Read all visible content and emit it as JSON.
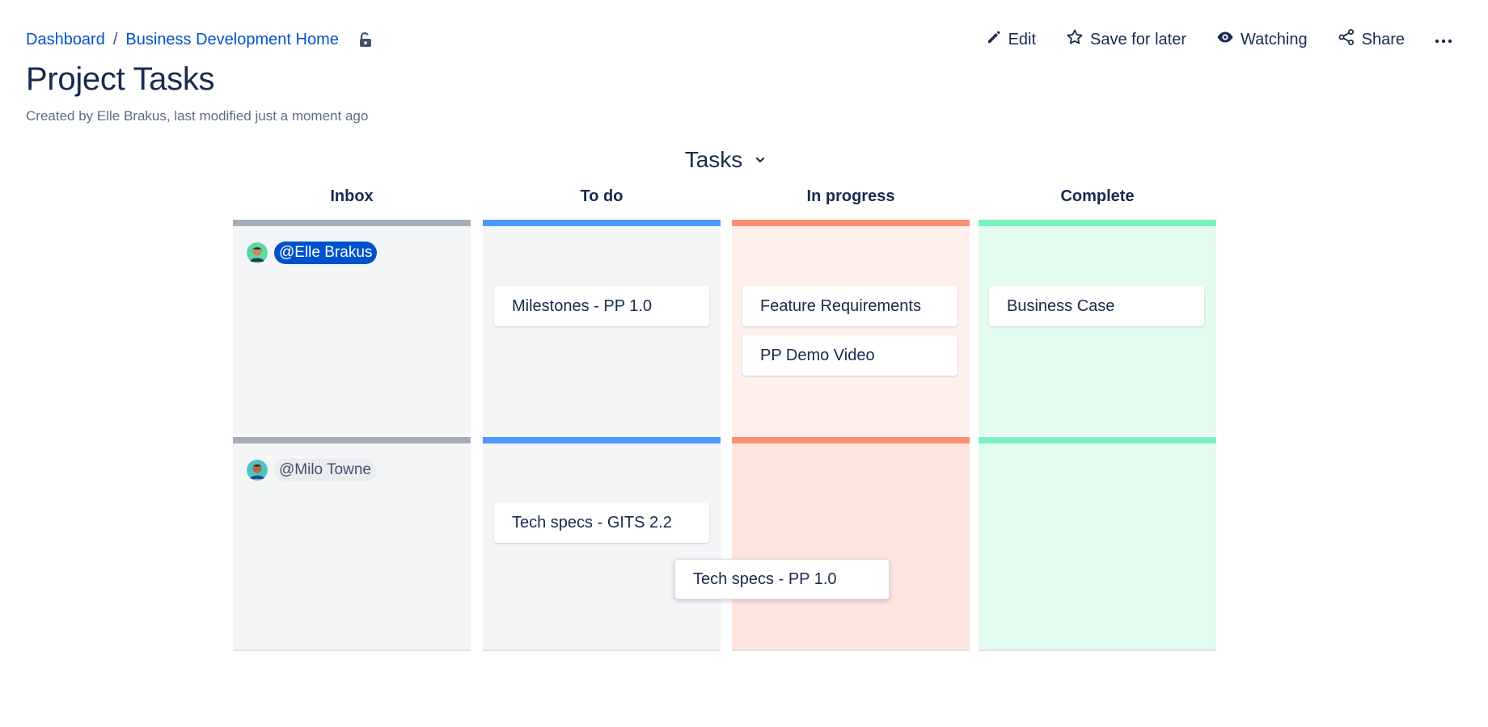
{
  "breadcrumbs": [
    "Dashboard",
    "Business Development Home"
  ],
  "breadcrumb_separator": "/",
  "icons": {
    "lock": "unlock-icon",
    "edit": "pencil-icon",
    "save": "star-icon",
    "watch": "eye-icon",
    "share": "share-icon",
    "more": "more-icon",
    "chevron": "chevron-down-icon"
  },
  "actions": {
    "edit": "Edit",
    "save_for_later": "Save for later",
    "watching": "Watching",
    "share": "Share",
    "more": "···"
  },
  "page": {
    "title": "Project Tasks",
    "byline": "Created by Elle Brakus, last modified just a moment ago"
  },
  "board": {
    "title": "Tasks",
    "columns": [
      {
        "label": "Inbox",
        "bar_color": "#a5adba",
        "bg_color": "#f4f5f7"
      },
      {
        "label": "To do",
        "bar_color": "#4c9aff",
        "bg_color": "#f4f5f7"
      },
      {
        "label": "In progress",
        "bar_color": "#ff8f73",
        "bg_color": "#ffebe6"
      },
      {
        "label": "Complete",
        "bar_color": "#79f2c0",
        "bg_color": "#e3fcef"
      }
    ],
    "rows": [
      {
        "assignee": "@Elle Brakus",
        "to_do": [
          "Milestones - PP 1.0"
        ],
        "in_progress": [
          "Feature Requirements",
          "PP Demo Video"
        ],
        "complete": [
          "Business Case"
        ]
      },
      {
        "assignee": "@Milo Towne",
        "to_do": [
          "Tech specs - GITS 2.2"
        ],
        "in_progress": [],
        "complete": []
      }
    ],
    "dragging_card": "Tech specs - PP 1.0"
  }
}
